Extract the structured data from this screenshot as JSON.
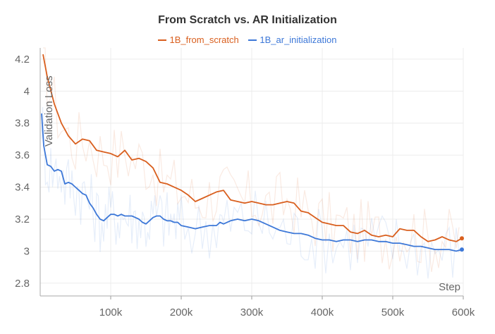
{
  "chart_data": {
    "type": "line",
    "title": "From Scratch vs. AR Initialization",
    "xlabel": "Step",
    "ylabel": "Validation Loss",
    "xlim": [
      0,
      600000
    ],
    "ylim": [
      2.72,
      4.27
    ],
    "x_ticks": [
      100000,
      200000,
      300000,
      400000,
      500000,
      600000
    ],
    "x_tick_labels": [
      "100k",
      "200k",
      "300k",
      "400k",
      "500k",
      "600k"
    ],
    "y_ticks": [
      2.8,
      3,
      3.2,
      3.4,
      3.6,
      3.8,
      4,
      4.2
    ],
    "y_tick_labels": [
      "2.8",
      "3",
      "3.2",
      "3.4",
      "3.6",
      "3.8",
      "4",
      "4.2"
    ],
    "grid": true,
    "legend_position": "top-center",
    "series": [
      {
        "name": "1B_from_scratch",
        "color": "#d95f1e",
        "x": [
          4000,
          10000,
          20000,
          30000,
          40000,
          50000,
          60000,
          70000,
          80000,
          90000,
          100000,
          110000,
          120000,
          130000,
          140000,
          150000,
          160000,
          170000,
          180000,
          190000,
          200000,
          210000,
          220000,
          230000,
          240000,
          250000,
          260000,
          270000,
          280000,
          290000,
          300000,
          310000,
          320000,
          330000,
          340000,
          350000,
          360000,
          370000,
          380000,
          390000,
          400000,
          410000,
          420000,
          430000,
          440000,
          450000,
          460000,
          470000,
          480000,
          490000,
          500000,
          510000,
          520000,
          530000,
          540000,
          550000,
          560000,
          570000,
          580000,
          590000,
          598000
        ],
        "values": [
          4.23,
          4.09,
          3.92,
          3.8,
          3.72,
          3.67,
          3.7,
          3.69,
          3.63,
          3.62,
          3.61,
          3.59,
          3.63,
          3.57,
          3.58,
          3.56,
          3.52,
          3.43,
          3.42,
          3.4,
          3.38,
          3.35,
          3.31,
          3.33,
          3.35,
          3.37,
          3.38,
          3.32,
          3.31,
          3.3,
          3.31,
          3.3,
          3.29,
          3.29,
          3.3,
          3.31,
          3.3,
          3.25,
          3.24,
          3.21,
          3.18,
          3.17,
          3.16,
          3.16,
          3.12,
          3.11,
          3.13,
          3.1,
          3.09,
          3.1,
          3.09,
          3.14,
          3.13,
          3.13,
          3.09,
          3.06,
          3.07,
          3.09,
          3.07,
          3.06,
          3.08
        ]
      },
      {
        "name": "1B_ar_initialization",
        "color": "#3d78d8",
        "x": [
          2000,
          5000,
          10000,
          15000,
          20000,
          25000,
          30000,
          35000,
          40000,
          45000,
          50000,
          55000,
          60000,
          65000,
          70000,
          75000,
          80000,
          85000,
          90000,
          95000,
          100000,
          105000,
          110000,
          115000,
          120000,
          125000,
          130000,
          135000,
          140000,
          145000,
          150000,
          155000,
          160000,
          165000,
          170000,
          175000,
          180000,
          185000,
          190000,
          195000,
          200000,
          210000,
          220000,
          230000,
          240000,
          250000,
          255000,
          260000,
          270000,
          280000,
          290000,
          300000,
          310000,
          320000,
          330000,
          340000,
          350000,
          360000,
          370000,
          380000,
          390000,
          400000,
          410000,
          420000,
          430000,
          440000,
          450000,
          460000,
          470000,
          480000,
          490000,
          500000,
          510000,
          520000,
          530000,
          540000,
          550000,
          560000,
          570000,
          580000,
          590000,
          598000
        ],
        "values": [
          3.86,
          3.66,
          3.54,
          3.53,
          3.5,
          3.51,
          3.5,
          3.42,
          3.43,
          3.42,
          3.4,
          3.38,
          3.36,
          3.35,
          3.3,
          3.27,
          3.23,
          3.2,
          3.19,
          3.21,
          3.23,
          3.23,
          3.22,
          3.23,
          3.22,
          3.22,
          3.22,
          3.21,
          3.2,
          3.18,
          3.17,
          3.19,
          3.21,
          3.22,
          3.22,
          3.2,
          3.19,
          3.19,
          3.18,
          3.18,
          3.16,
          3.15,
          3.14,
          3.15,
          3.16,
          3.16,
          3.18,
          3.17,
          3.19,
          3.2,
          3.19,
          3.2,
          3.19,
          3.17,
          3.15,
          3.13,
          3.12,
          3.11,
          3.11,
          3.1,
          3.08,
          3.07,
          3.07,
          3.06,
          3.07,
          3.07,
          3.06,
          3.07,
          3.07,
          3.06,
          3.06,
          3.05,
          3.05,
          3.04,
          3.03,
          3.03,
          3.02,
          3.01,
          3.01,
          3.01,
          3.0,
          3.01
        ]
      }
    ]
  }
}
